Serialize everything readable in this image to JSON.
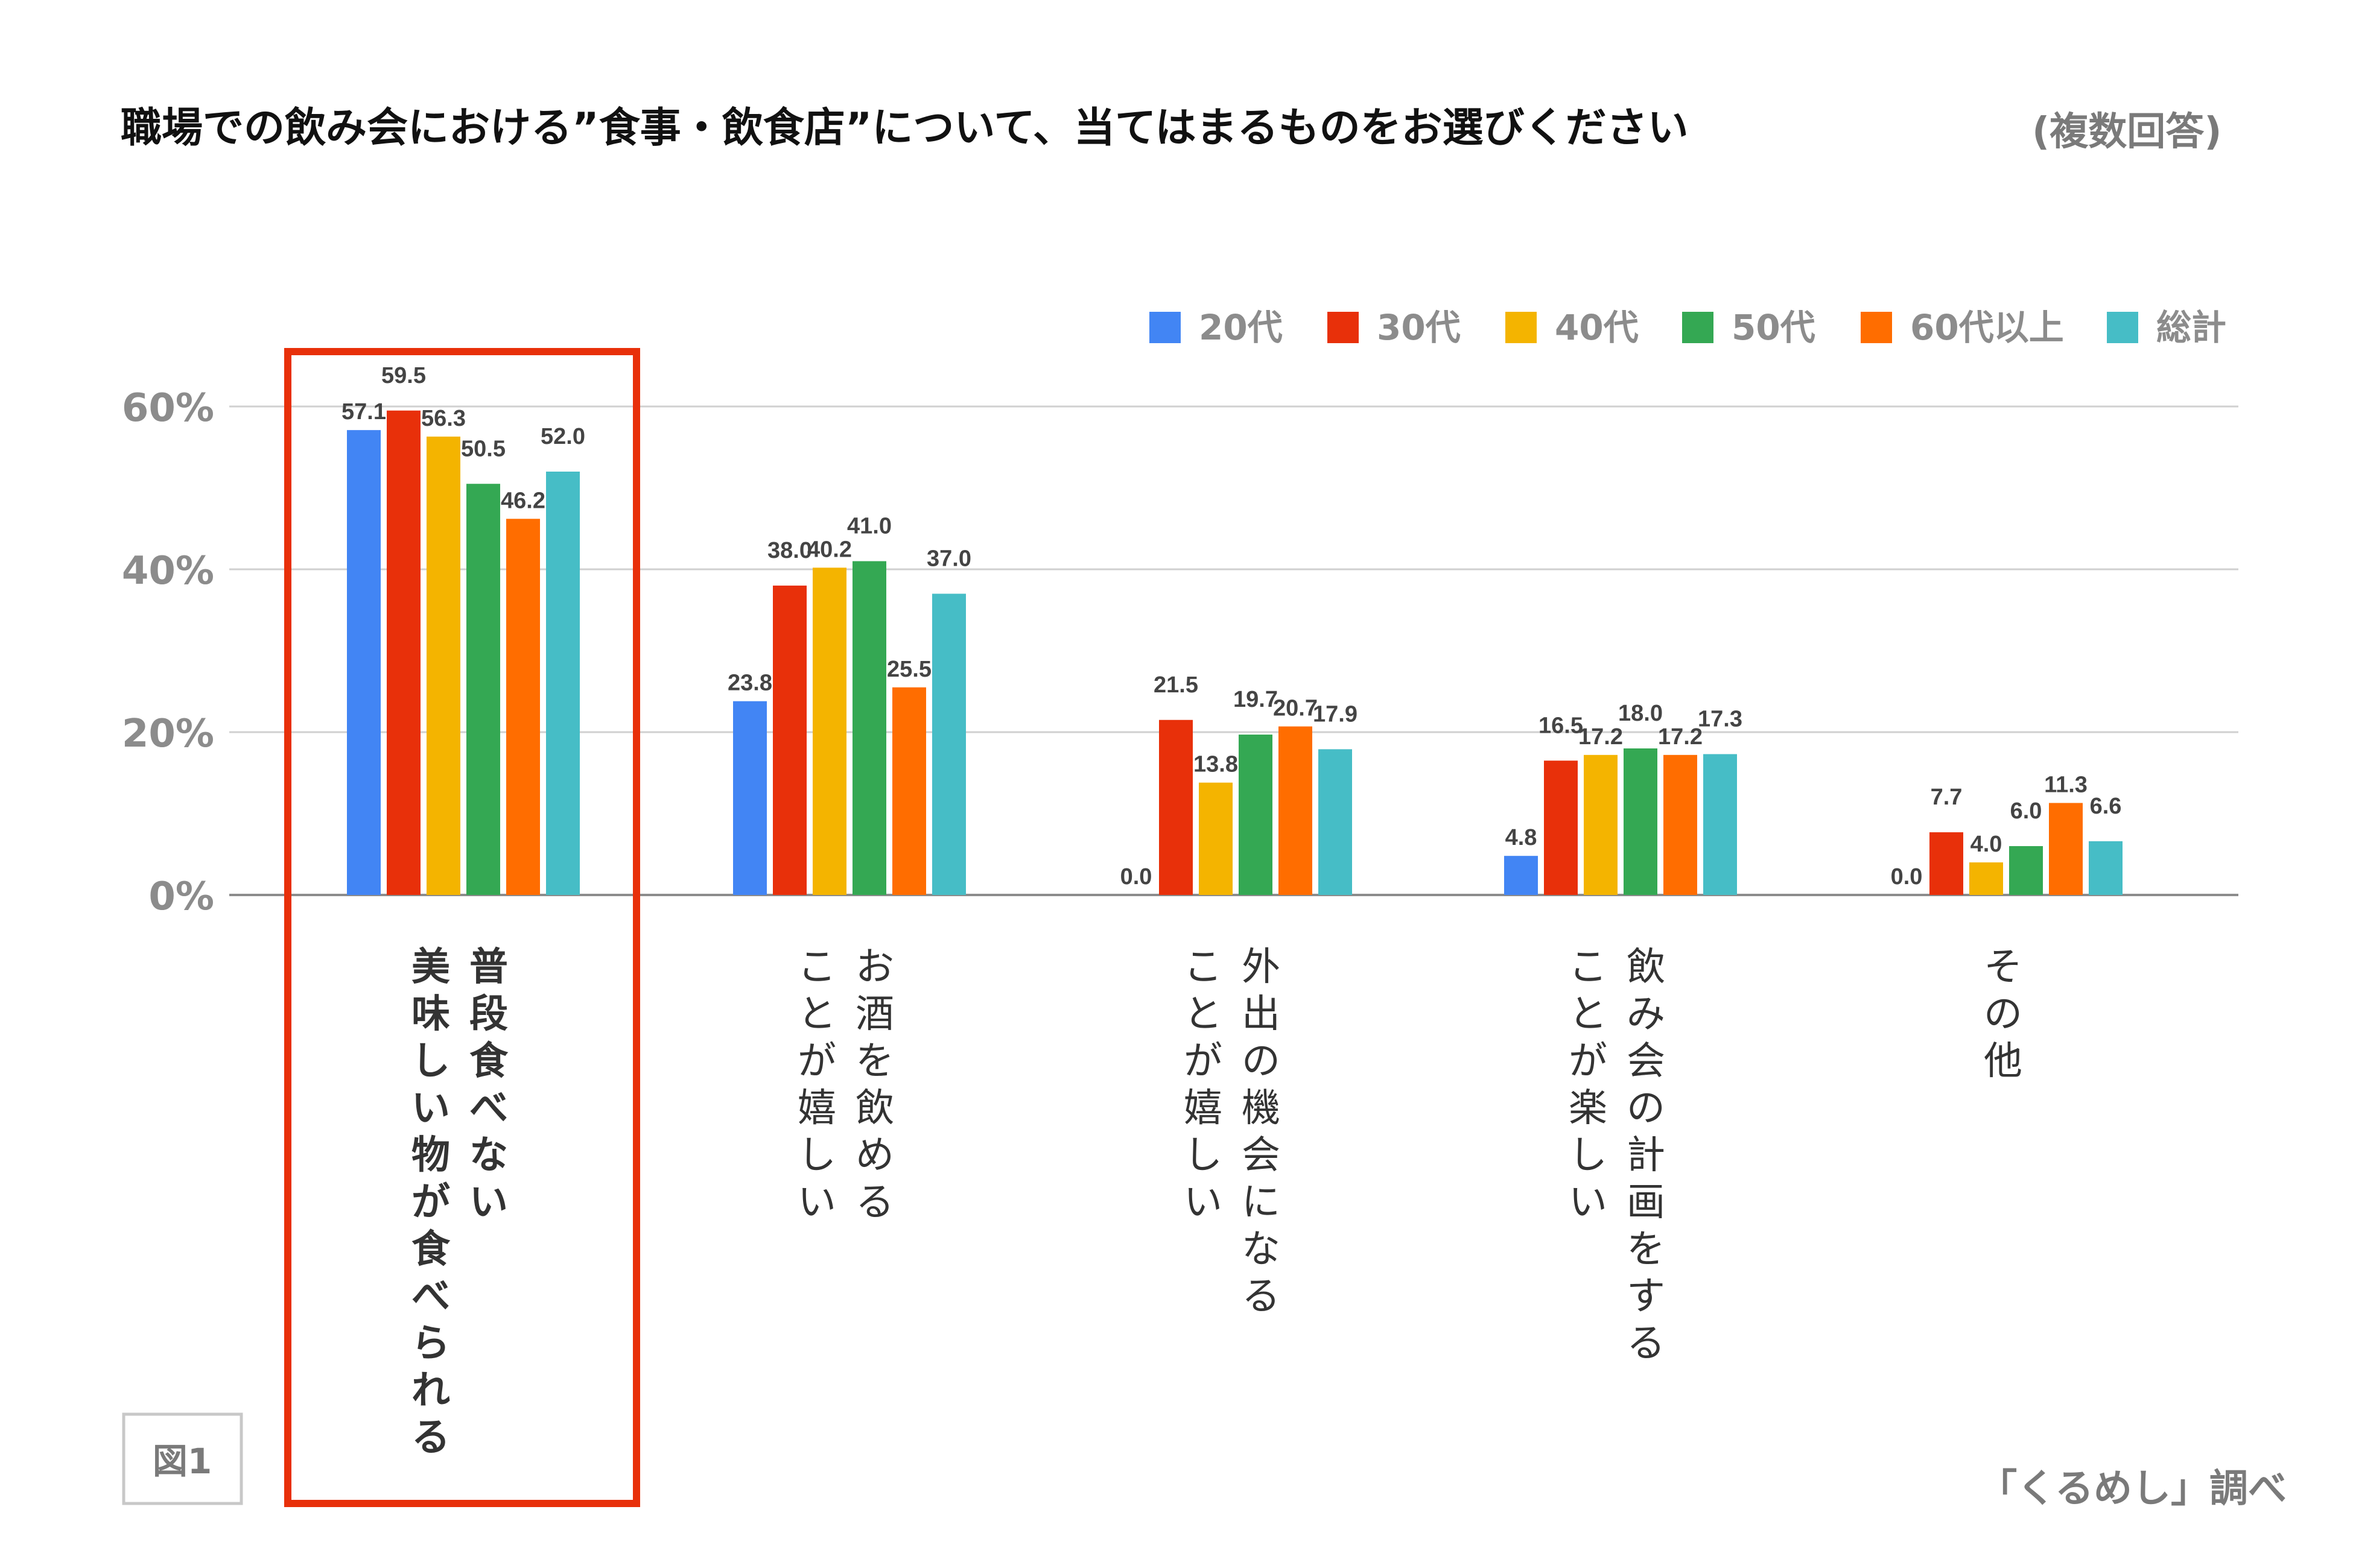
{
  "chart_data": {
    "type": "bar",
    "title": "職場での飲み会における”食事・飲食店”について、当てはまるものをお選びください",
    "subtitle": "(複数回答)",
    "categories": [
      [
        "普段食べない",
        "美味しい物が食べられる"
      ],
      [
        "お酒を飲める",
        "ことが嬉しい"
      ],
      [
        "外出の機会になる",
        "ことが嬉しい"
      ],
      [
        "飲み会の計画をする",
        "ことが楽しい"
      ],
      [
        "その他"
      ]
    ],
    "highlighted_category": 0,
    "series": [
      {
        "name": "20代",
        "color": "#4285F4",
        "values": [
          57.1,
          23.8,
          0.0,
          4.8,
          0.0
        ]
      },
      {
        "name": "30代",
        "color": "#E8300A",
        "values": [
          59.5,
          38.0,
          21.5,
          16.5,
          7.7
        ]
      },
      {
        "name": "40代",
        "color": "#F4B400",
        "values": [
          56.3,
          40.2,
          13.8,
          17.2,
          4.0
        ]
      },
      {
        "name": "50代",
        "color": "#34A853",
        "values": [
          50.5,
          41.0,
          19.7,
          18.0,
          6.0
        ]
      },
      {
        "name": "60代以上",
        "color": "#FF6D00",
        "values": [
          46.2,
          25.5,
          20.7,
          17.2,
          11.3
        ]
      },
      {
        "name": "総計",
        "color": "#46BDC6",
        "values": [
          52.0,
          37.0,
          17.9,
          17.3,
          6.6
        ]
      }
    ],
    "yticks": [
      "0%",
      "20%",
      "40%",
      "60%"
    ],
    "ylim": [
      0,
      60
    ],
    "legend_position": "top-right",
    "grid": true,
    "highlight_color": "#E8300A",
    "figure_label": "図1",
    "source": "「くるめし」調べ"
  }
}
